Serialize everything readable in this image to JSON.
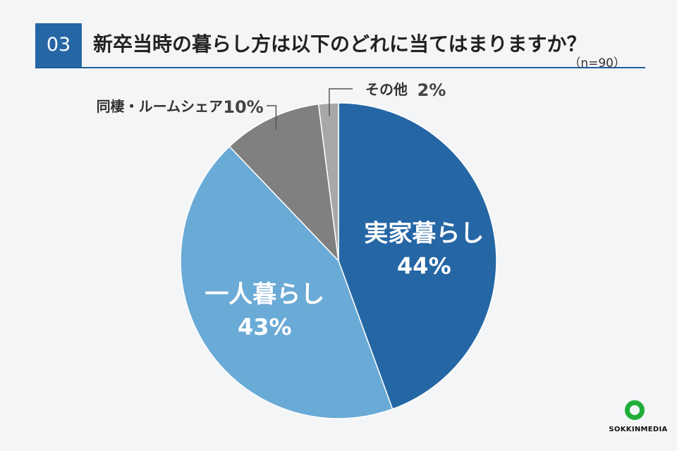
{
  "header": {
    "question_number": "03",
    "title": "新卒当時の暮らし方は以下のどれに当てはまりますか？",
    "sample_size": "（n=90）"
  },
  "chart_data": {
    "type": "pie",
    "title": "新卒当時の暮らし方は以下のどれに当てはまりますか？",
    "slices": [
      {
        "label": "実家暮らし",
        "value": 44,
        "display": "44%",
        "color": "#2566a5"
      },
      {
        "label": "一人暮らし",
        "value": 43,
        "display": "43%",
        "color": "#6aaad6"
      },
      {
        "label": "同棲・ルームシェア",
        "value": 10,
        "display": "10%",
        "color": "#808080"
      },
      {
        "label": "その他",
        "value": 2,
        "display": "2%",
        "color": "#a8a8a8"
      }
    ]
  },
  "logo": {
    "text": "SOKKINMEDIA"
  }
}
